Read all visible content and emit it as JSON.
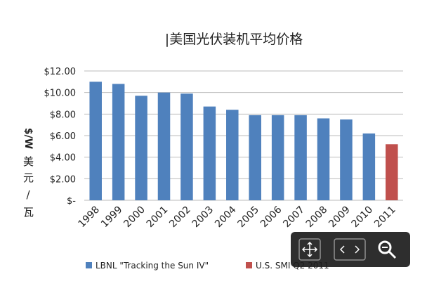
{
  "chart_data": {
    "type": "bar",
    "title": "|美国光伏装机平均价格",
    "y_label": "$/W",
    "y_label_secondary": "美元/瓦",
    "categories": [
      "1998",
      "1999",
      "2000",
      "2001",
      "2002",
      "2003",
      "2004",
      "2005",
      "2006",
      "2007",
      "2008",
      "2009",
      "2010",
      "2011"
    ],
    "series": [
      {
        "name": "LBNL \"Tracking the Sun IV\"",
        "color": "#4f81bd",
        "values": [
          11.0,
          10.8,
          9.7,
          10.0,
          9.9,
          8.7,
          8.4,
          7.9,
          7.9,
          7.9,
          7.6,
          7.5,
          6.2,
          null
        ]
      },
      {
        "name": "U.S. SMI Q2 2011",
        "color": "#c0504d",
        "values": [
          null,
          null,
          null,
          null,
          null,
          null,
          null,
          null,
          null,
          null,
          null,
          null,
          null,
          5.2
        ]
      }
    ],
    "ylim": [
      0,
      12
    ],
    "yticks": [
      {
        "value": 0,
        "label": "$-"
      },
      {
        "value": 2,
        "label": "$2.00"
      },
      {
        "value": 4,
        "label": "$4.00"
      },
      {
        "value": 6,
        "label": "$6.00"
      },
      {
        "value": 8,
        "label": "$8.00"
      },
      {
        "value": 10,
        "label": "$10.00"
      },
      {
        "value": 12,
        "label": "$12.00"
      }
    ],
    "grid": true
  }
}
